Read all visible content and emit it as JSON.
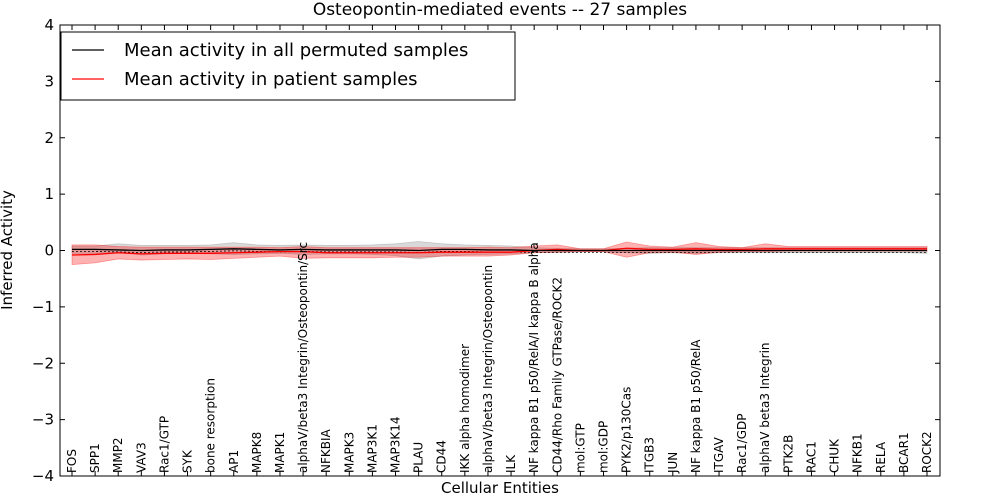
{
  "chart_data": {
    "type": "line",
    "title": "Osteopontin-mediated events -- 27 samples",
    "xlabel": "Cellular Entities",
    "ylabel": "Inferred Activity",
    "ylim": [
      -4,
      4
    ],
    "yticks": [
      {
        "value": 4,
        "label": "4"
      },
      {
        "value": 3,
        "label": "3"
      },
      {
        "value": 2,
        "label": "2"
      },
      {
        "value": 1,
        "label": "1"
      },
      {
        "value": 0,
        "label": "0"
      },
      {
        "value": -1,
        "label": "−1"
      },
      {
        "value": -2,
        "label": "−2"
      },
      {
        "value": -3,
        "label": "−3"
      },
      {
        "value": -4,
        "label": "−4"
      }
    ],
    "grid": false,
    "legend_position": "top-left",
    "categories": [
      "FOS",
      "SPP1",
      "MMP2",
      "VAV3",
      "Rac1/GTP",
      "SYK",
      "bone resorption",
      "AP1",
      "MAPK8",
      "MAPK1",
      "alphaV/beta3 Integrin/Osteopontin/Src",
      "NFKBIA",
      "MAPK3",
      "MAP3K1",
      "MAP3K14",
      "PLAU",
      "CD44",
      "IKK alpha homodimer",
      "alphaV/beta3 Integrin/Osteopontin",
      "ILK",
      "NF kappa B1 p50/RelA/I kappa B alpha",
      "CD44/Rho Family GTPase/ROCK2",
      "mol:GTP",
      "mol:GDP",
      "PYK2/p130Cas",
      "ITGB3",
      "JUN",
      "NF kappa B1 p50/RelA",
      "ITGAV",
      "Rac1/GDP",
      "alphaV beta3 Integrin",
      "PTK2B",
      "RAC1",
      "CHUK",
      "NFKB1",
      "RELA",
      "BCAR1",
      "ROCK2"
    ],
    "series": [
      {
        "name": "Mean activity in all permuted samples",
        "color": "#000000",
        "values": [
          0.02,
          0.02,
          0.01,
          0.0,
          0.01,
          0.01,
          0.02,
          0.03,
          0.02,
          0.01,
          0.02,
          0.01,
          0.01,
          0.01,
          0.01,
          0.0,
          0.02,
          0.02,
          0.01,
          0.01,
          0.0,
          0.0,
          0.0,
          0.0,
          0.0,
          0.0,
          0.0,
          0.0,
          0.0,
          0.0,
          0.0,
          0.0,
          0.0,
          0.0,
          0.0,
          0.0,
          0.0,
          0.0
        ],
        "band_low": [
          -0.05,
          -0.05,
          -0.02,
          -0.08,
          -0.06,
          -0.05,
          -0.06,
          -0.07,
          -0.06,
          -0.05,
          -0.07,
          -0.06,
          -0.06,
          -0.07,
          -0.09,
          -0.15,
          -0.1,
          -0.08,
          -0.07,
          -0.06,
          -0.04,
          -0.03,
          -0.02,
          -0.02,
          -0.04,
          -0.05,
          -0.04,
          -0.05,
          -0.04,
          -0.04,
          -0.04,
          -0.04,
          -0.04,
          -0.04,
          -0.04,
          -0.04,
          -0.04,
          -0.05
        ],
        "band_high": [
          0.08,
          0.08,
          0.12,
          0.09,
          0.09,
          0.09,
          0.1,
          0.14,
          0.1,
          0.09,
          0.1,
          0.09,
          0.09,
          0.1,
          0.12,
          0.16,
          0.12,
          0.1,
          0.09,
          0.08,
          0.05,
          0.04,
          0.03,
          0.03,
          0.04,
          0.05,
          0.05,
          0.05,
          0.05,
          0.05,
          0.05,
          0.05,
          0.05,
          0.05,
          0.05,
          0.05,
          0.05,
          0.05
        ]
      },
      {
        "name": "Mean activity in patient samples",
        "color": "#ff0000",
        "values": [
          -0.08,
          -0.07,
          -0.04,
          -0.06,
          -0.05,
          -0.05,
          -0.05,
          -0.04,
          -0.03,
          -0.02,
          -0.02,
          -0.04,
          -0.04,
          -0.04,
          -0.04,
          -0.04,
          -0.03,
          -0.03,
          -0.03,
          -0.03,
          0.0,
          0.02,
          0.0,
          0.0,
          0.04,
          0.02,
          0.02,
          0.03,
          0.02,
          0.02,
          0.03,
          0.03,
          0.03,
          0.03,
          0.03,
          0.03,
          0.03,
          0.03
        ],
        "band_low": [
          -0.25,
          -0.22,
          -0.15,
          -0.17,
          -0.16,
          -0.15,
          -0.16,
          -0.14,
          -0.12,
          -0.1,
          -0.14,
          -0.13,
          -0.13,
          -0.13,
          -0.12,
          -0.12,
          -0.1,
          -0.1,
          -0.1,
          -0.08,
          -0.04,
          -0.03,
          -0.02,
          -0.02,
          -0.12,
          -0.04,
          -0.03,
          -0.07,
          -0.03,
          -0.02,
          -0.02,
          -0.01,
          -0.01,
          -0.01,
          -0.01,
          -0.01,
          -0.01,
          -0.01
        ],
        "band_high": [
          0.1,
          0.1,
          0.07,
          0.06,
          0.06,
          0.06,
          0.06,
          0.06,
          0.06,
          0.05,
          0.07,
          0.05,
          0.05,
          0.05,
          0.05,
          0.05,
          0.05,
          0.05,
          0.06,
          0.05,
          0.08,
          0.1,
          0.03,
          0.03,
          0.15,
          0.08,
          0.06,
          0.14,
          0.07,
          0.05,
          0.12,
          0.07,
          0.07,
          0.07,
          0.07,
          0.07,
          0.07,
          0.07
        ]
      }
    ]
  }
}
